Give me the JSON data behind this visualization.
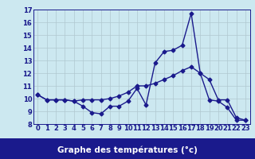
{
  "xlabel": "Graphe des températures (°c)",
  "hours": [
    0,
    1,
    2,
    3,
    4,
    5,
    6,
    7,
    8,
    9,
    10,
    11,
    12,
    13,
    14,
    15,
    16,
    17,
    18,
    19,
    20,
    21,
    22,
    23
  ],
  "line1_y": [
    10.3,
    9.9,
    9.9,
    9.9,
    9.8,
    9.4,
    8.9,
    8.8,
    9.4,
    9.4,
    9.8,
    10.8,
    9.5,
    12.8,
    13.7,
    13.8,
    14.2,
    16.7,
    12.0,
    9.9,
    9.8,
    9.3,
    8.3,
    8.3
  ],
  "line2_y": [
    10.3,
    9.9,
    9.9,
    9.9,
    9.8,
    9.9,
    9.9,
    9.9,
    10.0,
    10.2,
    10.5,
    11.0,
    11.0,
    11.2,
    11.5,
    11.8,
    12.2,
    12.5,
    12.0,
    11.5,
    9.9,
    9.9,
    8.5,
    8.3
  ],
  "ylim": [
    8,
    17
  ],
  "yticks": [
    8,
    9,
    10,
    11,
    12,
    13,
    14,
    15,
    16,
    17
  ],
  "line_color": "#1a1a8c",
  "bg_color": "#cce8f0",
  "grid_color": "#b0c8d0",
  "marker": "D",
  "markersize": 2.5,
  "linewidth": 1.0,
  "tick_fontsize": 6,
  "xlabel_fontsize": 7.5,
  "xlabel_bg": "#1a1a8c",
  "xlabel_fg": "#ffffff"
}
